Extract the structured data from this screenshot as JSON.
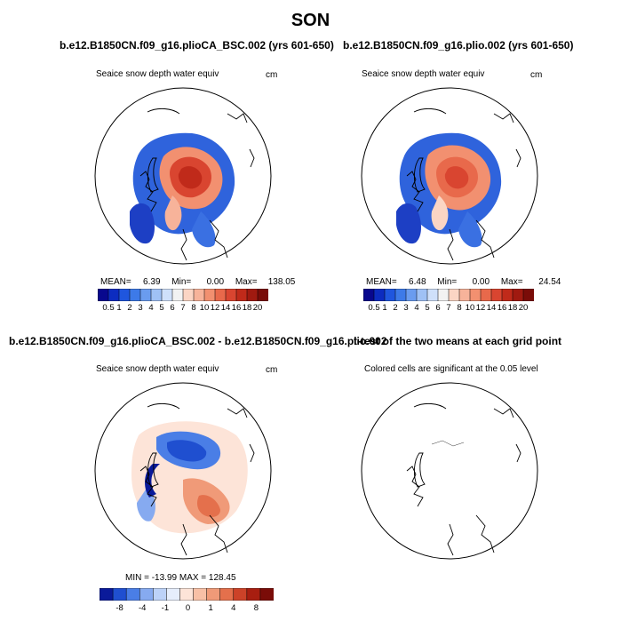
{
  "figure": {
    "title": "SON"
  },
  "panels": [
    {
      "title": "b.e12.B1850CN.f09_g16.plioCA_BSC.002 (yrs 601-650)",
      "subtitle": "Seaice snow depth water equiv",
      "units": "cm",
      "stats": {
        "mean_label": "MEAN=",
        "mean": "6.39",
        "min_label": "Min=",
        "min": "0.00",
        "max_label": "Max=",
        "max": "138.05"
      }
    },
    {
      "title": "b.e12.B1850CN.f09_g16.plio.002 (yrs 601-650)",
      "subtitle": "Seaice snow depth water equiv",
      "units": "cm",
      "stats": {
        "mean_label": "MEAN=",
        "mean": "6.48",
        "min_label": "Min=",
        "min": "0.00",
        "max_label": "Max=",
        "max": "24.54"
      }
    },
    {
      "title": "b.e12.B1850CN.f09_g16.plioCA_BSC.002 - b.e12.B1850CN.f09_g16.plio.002",
      "subtitle": "Seaice snow depth water equiv",
      "units": "cm",
      "stats_text": "MIN = -13.99  MAX = 128.45"
    },
    {
      "title": "t-test of the two means at each grid point",
      "subtitle": "Colored cells are significant at the 0.05 level"
    }
  ],
  "chart_data": [
    {
      "type": "heatmap",
      "title": "b.e12.B1850CN.f09_g16.plioCA_BSC.002 (yrs 601-650)",
      "variable": "Seaice snow depth water equiv",
      "units": "cm",
      "mean": 6.39,
      "min": 0.0,
      "max": 138.05,
      "colorbar_levels": [
        0.5,
        1,
        2,
        3,
        4,
        5,
        6,
        7,
        8,
        10,
        12,
        14,
        16,
        18,
        20
      ],
      "colorbar_colors": [
        "#08088e",
        "#0c2cc0",
        "#1f56de",
        "#3d7ae8",
        "#6a9cef",
        "#9fc1f5",
        "#cfe0fa",
        "#f2f2f2",
        "#fbd5c4",
        "#f7b39a",
        "#f29070",
        "#e8694b",
        "#d94530",
        "#c02a1a",
        "#a01a10",
        "#7a0c08"
      ]
    },
    {
      "type": "heatmap",
      "title": "b.e12.B1850CN.f09_g16.plio.002 (yrs 601-650)",
      "variable": "Seaice snow depth water equiv",
      "units": "cm",
      "mean": 6.48,
      "min": 0.0,
      "max": 24.54,
      "colorbar_levels": [
        0.5,
        1,
        2,
        3,
        4,
        5,
        6,
        7,
        8,
        10,
        12,
        14,
        16,
        18,
        20
      ],
      "colorbar_colors": [
        "#08088e",
        "#0c2cc0",
        "#1f56de",
        "#3d7ae8",
        "#6a9cef",
        "#9fc1f5",
        "#cfe0fa",
        "#f2f2f2",
        "#fbd5c4",
        "#f7b39a",
        "#f29070",
        "#e8694b",
        "#d94530",
        "#c02a1a",
        "#a01a10",
        "#7a0c08"
      ]
    },
    {
      "type": "heatmap",
      "title": "b.e12.B1850CN.f09_g16.plioCA_BSC.002 - b.e12.B1850CN.f09_g16.plio.002",
      "variable": "Seaice snow depth water equiv",
      "units": "cm",
      "min": -13.99,
      "max": 128.45,
      "colorbar_levels": [
        -8,
        -4,
        -1,
        0,
        1,
        4,
        8
      ],
      "colorbar_tick_labels": [
        "-8",
        "-4",
        "-1",
        "0",
        "1",
        "4",
        "8"
      ],
      "colorbar_colors": [
        "#0a1a9a",
        "#1f4fd0",
        "#4a7ee6",
        "#86aaf0",
        "#bcd2f8",
        "#e6eefc",
        "#fde4d8",
        "#f8c0a6",
        "#f09a78",
        "#e4704c",
        "#cc4228",
        "#a81e10",
        "#7a0c08"
      ]
    },
    {
      "type": "heatmap",
      "title": "t-test of the two means at each grid point",
      "note": "Colored cells are significant at the 0.05 level"
    }
  ]
}
